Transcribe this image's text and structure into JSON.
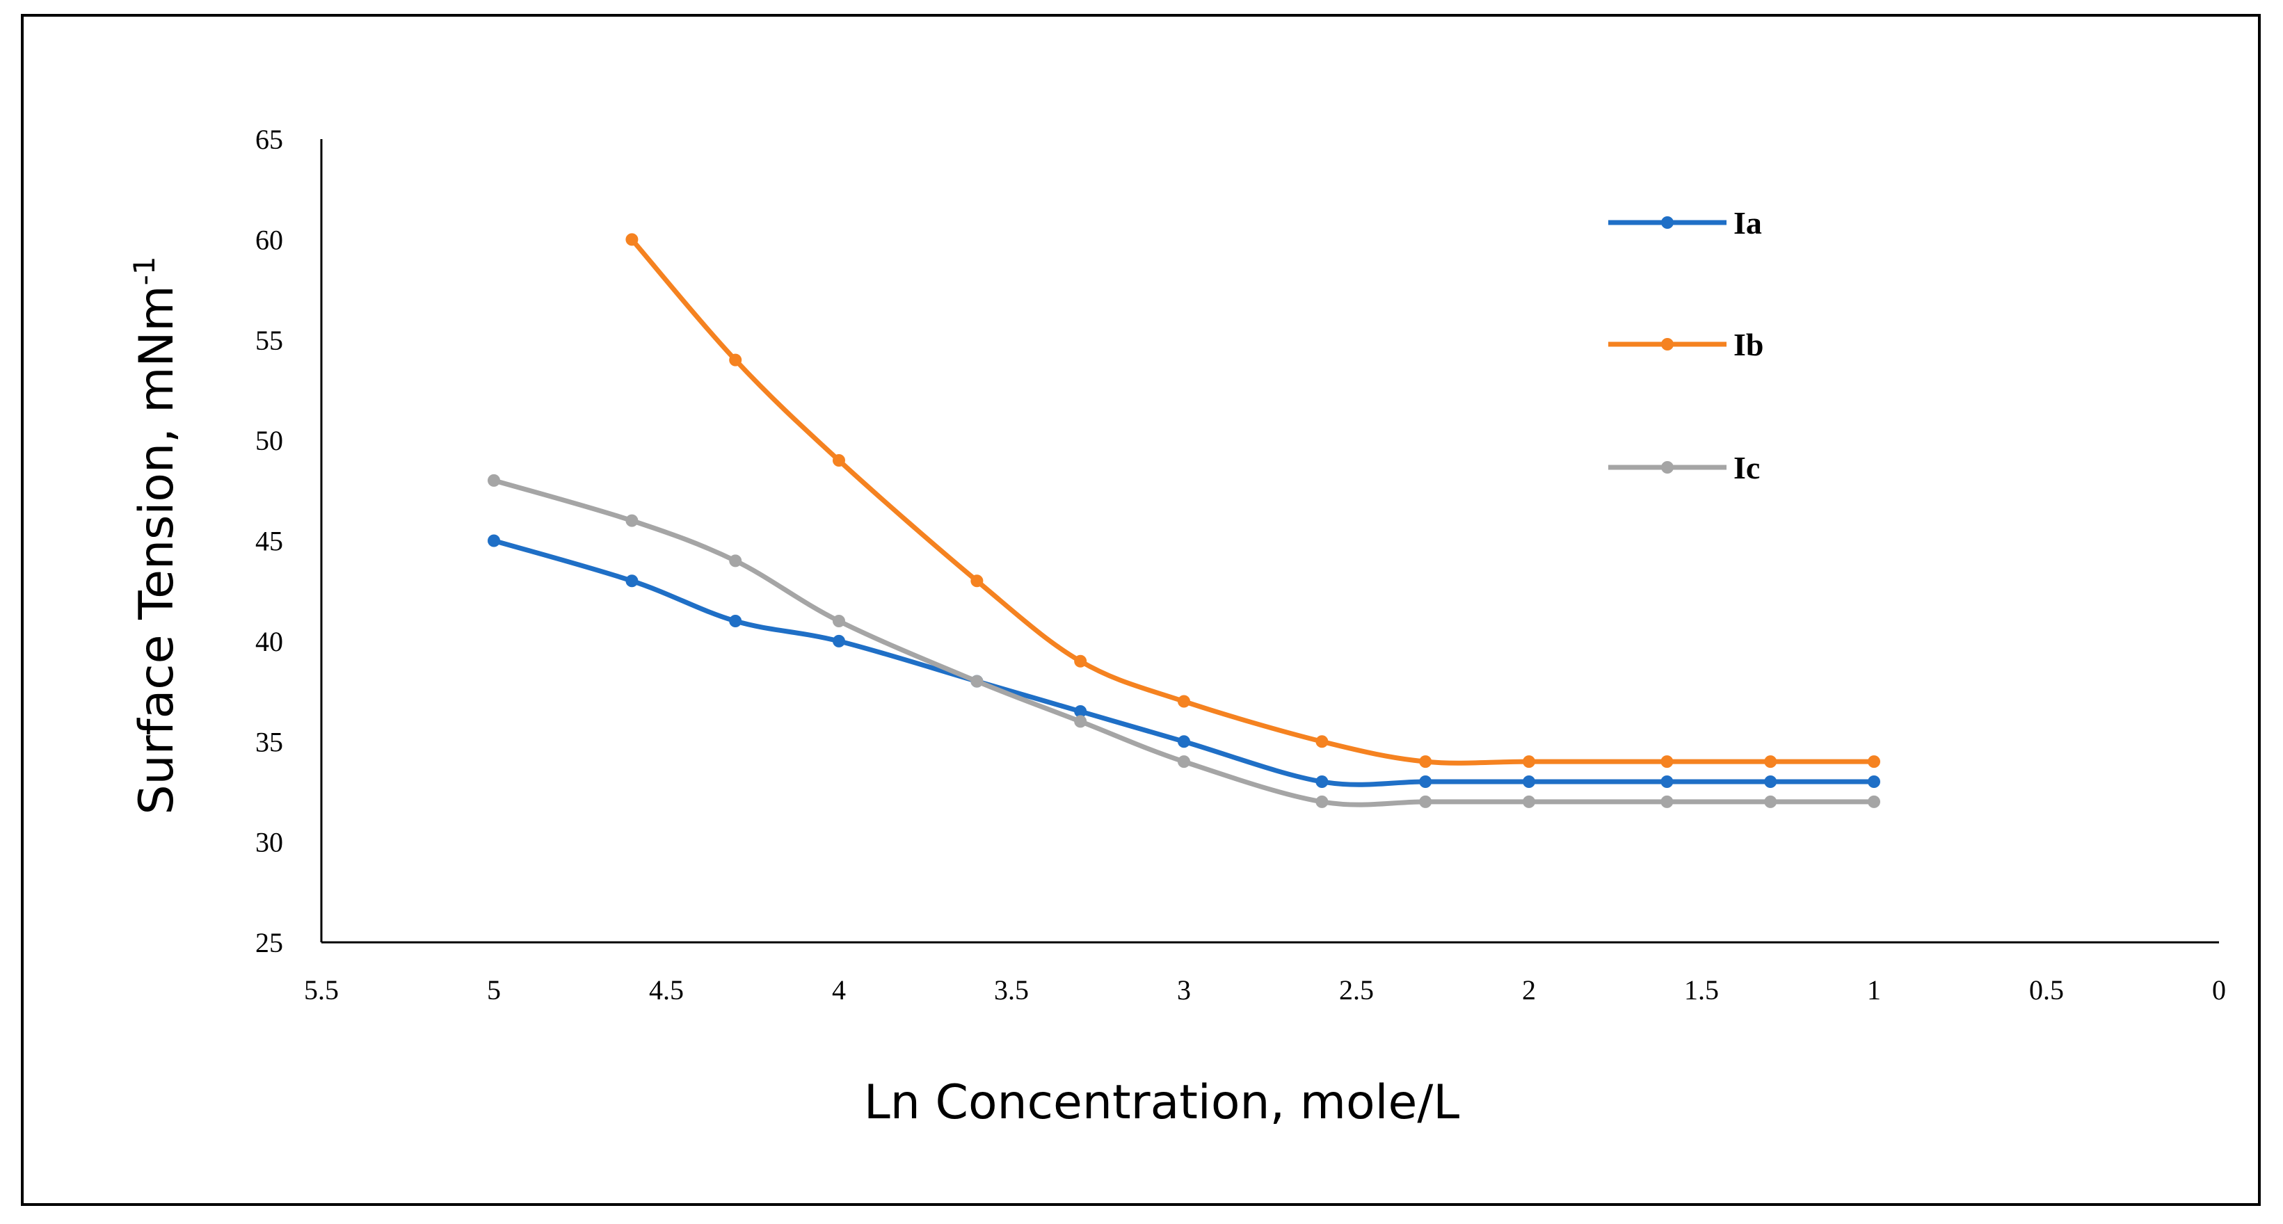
{
  "chart_data": {
    "type": "line",
    "title": "",
    "xlabel": "Ln Concentration, mole/L",
    "ylabel_main": "Surface Tension, mNm",
    "ylabel_sup": "-1",
    "xlim": [
      5.5,
      0
    ],
    "ylim": [
      25,
      65
    ],
    "x_ticks": [
      "5.5",
      "5",
      "4.5",
      "4",
      "3.5",
      "3",
      "2.5",
      "2",
      "1.5",
      "1",
      "0.5",
      "0"
    ],
    "y_ticks": [
      "25",
      "30",
      "35",
      "40",
      "45",
      "50",
      "55",
      "60",
      "65"
    ],
    "legend_position": "top-right",
    "grid": false,
    "series": [
      {
        "name": "Ia",
        "color": "#1f6fc6",
        "x": [
          5,
          4.6,
          4.3,
          4,
          3.6,
          3.3,
          3,
          2.6,
          2.3,
          2,
          1.6,
          1.3,
          1
        ],
        "values": [
          45,
          43,
          41,
          40,
          38,
          36.5,
          35,
          33,
          33,
          33,
          33,
          33,
          33
        ]
      },
      {
        "name": "Ib",
        "color": "#f58220",
        "x": [
          4.6,
          4.3,
          4,
          3.6,
          3.3,
          3,
          2.6,
          2.3,
          2,
          1.6,
          1.3,
          1
        ],
        "values": [
          60,
          54,
          49,
          43,
          39,
          37,
          35,
          34,
          34,
          34,
          34,
          34
        ]
      },
      {
        "name": "Ic",
        "color": "#a5a5a5",
        "x": [
          5,
          4.6,
          4.3,
          4,
          3.6,
          3.3,
          3,
          2.6,
          2.3,
          2,
          1.6,
          1.3,
          1
        ],
        "values": [
          48,
          46,
          44,
          41,
          38,
          36,
          34,
          32,
          32,
          32,
          32,
          32,
          32
        ]
      }
    ]
  }
}
